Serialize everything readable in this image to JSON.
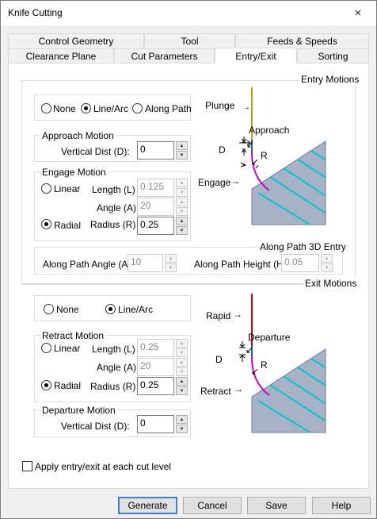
{
  "window": {
    "title": "Knife Cutting",
    "close_icon": "×"
  },
  "tabs": {
    "row1": [
      "Control Geometry",
      "Tool",
      "Feeds & Speeds"
    ],
    "row2": [
      "Clearance Plane",
      "Cut Parameters",
      "Entry/Exit",
      "Sorting"
    ],
    "active": "Entry/Exit"
  },
  "entry": {
    "group_title": "Entry Motions",
    "options": {
      "none": "None",
      "line_arc": "Line/Arc",
      "along_path": "Along Path",
      "selected": "Line/Arc"
    },
    "approach": {
      "title": "Approach Motion",
      "vertical_label": "Vertical Dist (D):",
      "vertical_value": "0"
    },
    "engage": {
      "title": "Engage Motion",
      "linear": "Linear",
      "radial": "Radial",
      "selected": "Radial",
      "length_label": "Length (L)",
      "length_value": "0.125",
      "angle_label": "Angle (A)",
      "angle_value": "20",
      "radius_label": "Radius (R)",
      "radius_value": "0.25"
    },
    "along_path_3d": {
      "title": "Along Path 3D Entry",
      "angle_label": "Along Path Angle (A)",
      "angle_value": "10",
      "height_label": "Along Path Height (H)",
      "height_value": "0.05"
    },
    "diagram": {
      "plunge": "Plunge",
      "approach": "Approach",
      "d": "D",
      "r": "R",
      "engage": "Engage"
    }
  },
  "exit": {
    "group_title": "Exit Motions",
    "options": {
      "none": "None",
      "line_arc": "Line/Arc",
      "selected": "Line/Arc"
    },
    "retract": {
      "title": "Retract Motion",
      "linear": "Linear",
      "radial": "Radial",
      "selected": "Radial",
      "length_label": "Length (L)",
      "length_value": "0.25",
      "angle_label": "Angle (A)",
      "angle_value": "20",
      "radius_label": "Radius (R)",
      "radius_value": "0.25"
    },
    "departure": {
      "title": "Departure Motion",
      "vertical_label": "Vertical Dist (D):",
      "vertical_value": "0"
    },
    "diagram": {
      "rapid": "Rapid",
      "departure": "Departure",
      "d": "D",
      "r": "R",
      "retract": "Retract"
    }
  },
  "apply_each_level": {
    "label": "Apply entry/exit at each cut level",
    "checked": false
  },
  "buttons": {
    "generate": "Generate",
    "cancel": "Cancel",
    "save": "Save",
    "help": "Help"
  },
  "colors": {
    "plunge": "#c8a000",
    "rapid": "#cc0000",
    "arc": "#cc00cc",
    "approach_line": "#1560bd",
    "material_hatch": "#00c8d0",
    "material_fill": "#a8b2c6"
  }
}
